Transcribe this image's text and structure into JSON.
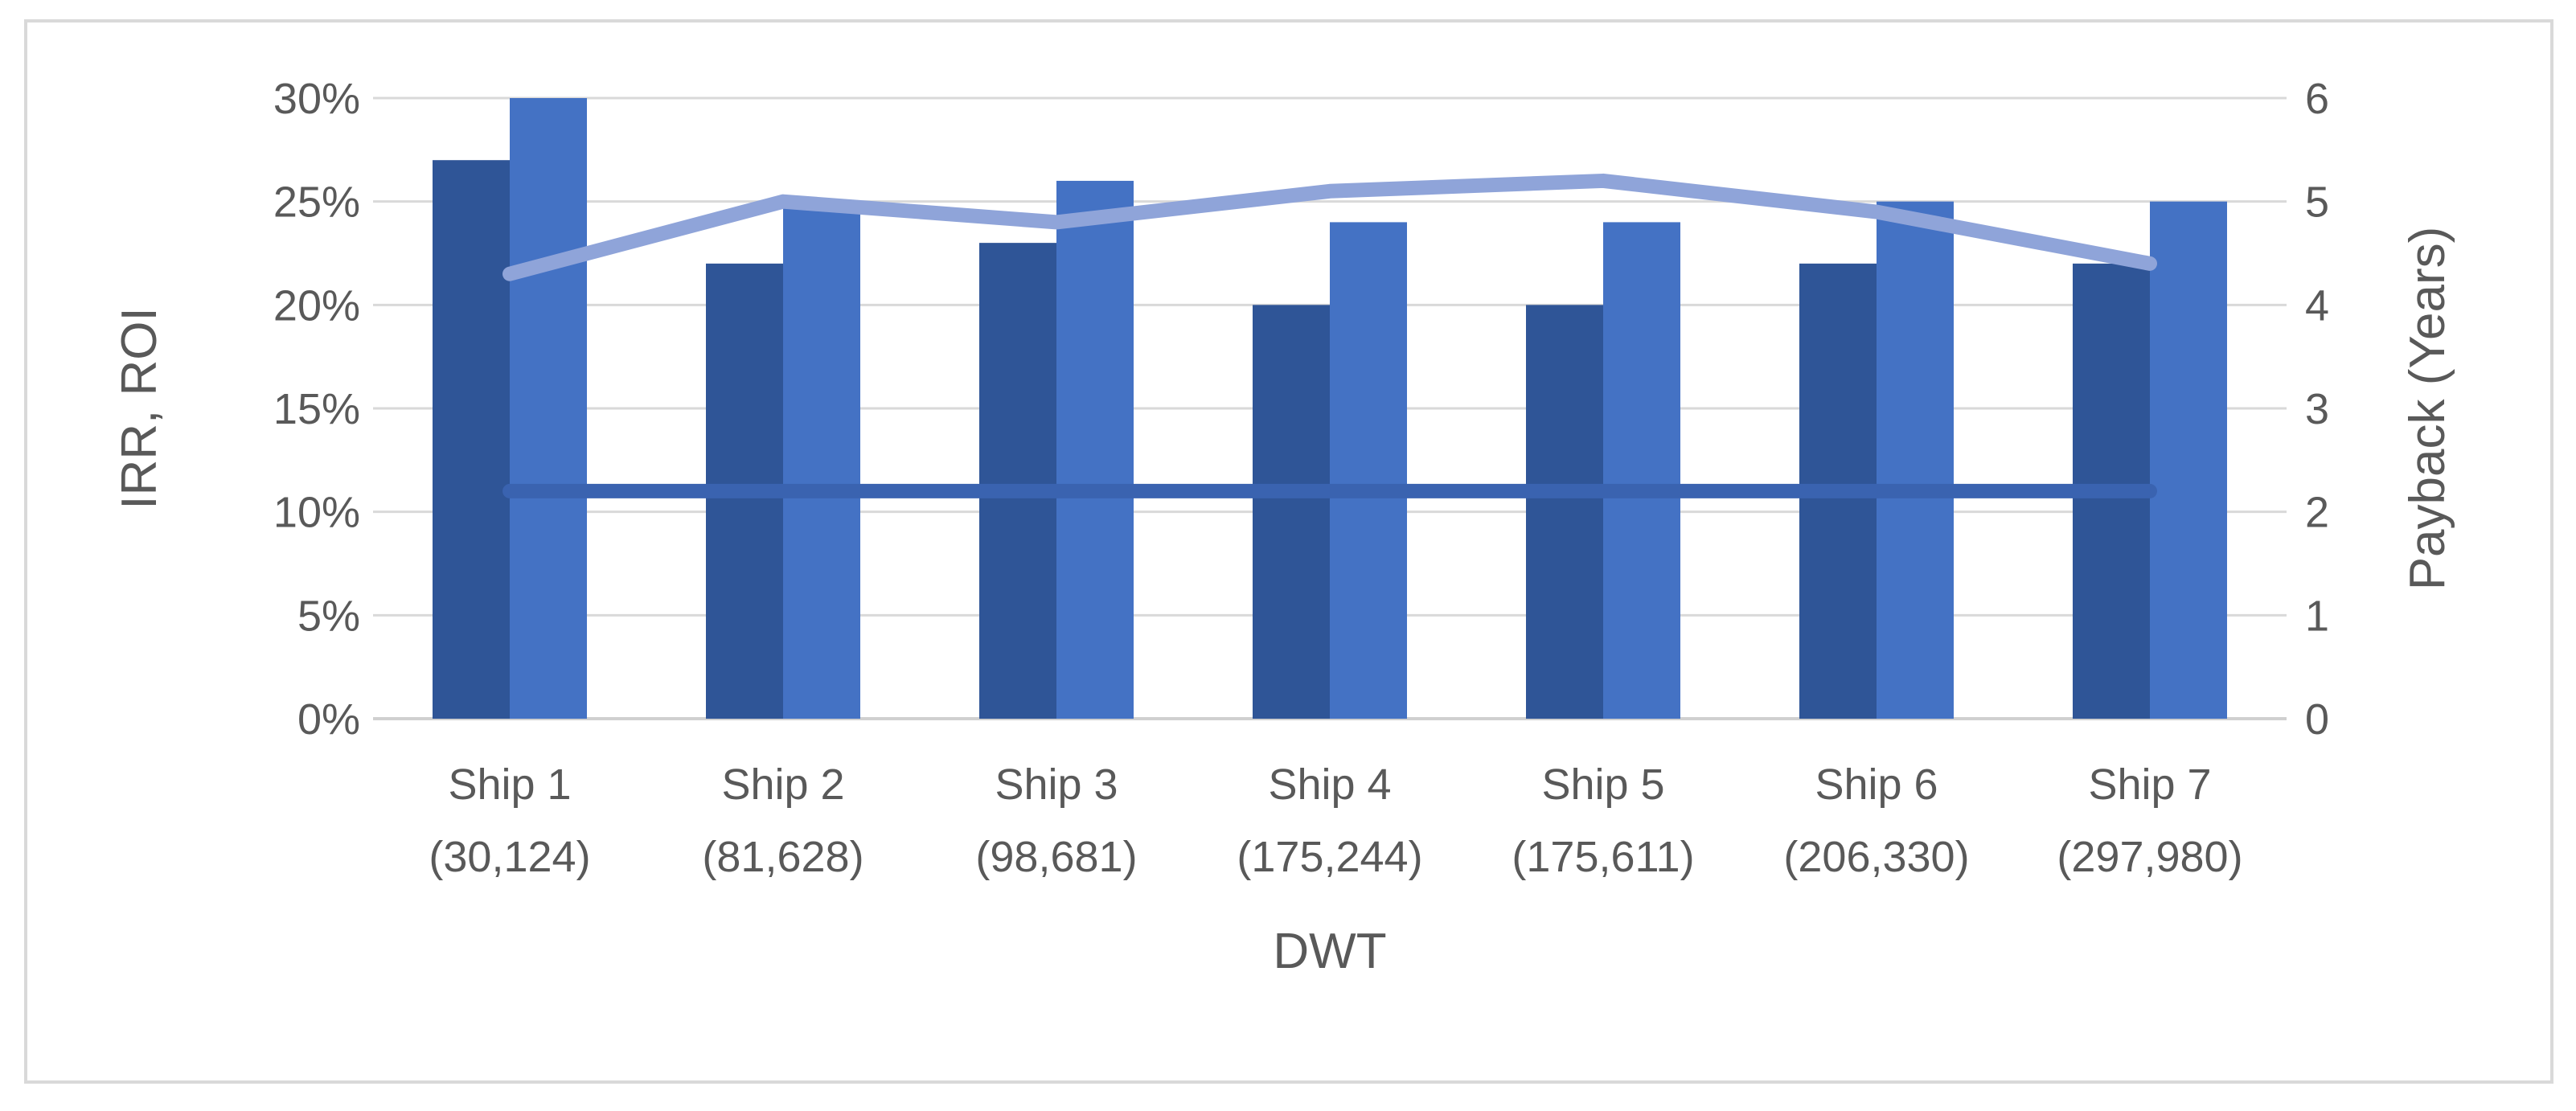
{
  "chart_data": {
    "type": "bar",
    "categories": [
      "Ship 1\n(30,124)",
      "Ship 2\n(81,628)",
      "Ship 3\n(98,681)",
      "Ship 4\n(175,244)",
      "Ship 5\n(175,611)",
      "Ship 6\n(206,330)",
      "Ship 7\n(297,980)"
    ],
    "xlabel": "DWT",
    "ylabel": "IRR, ROI",
    "y2label": "Payback (Years)",
    "ylim": [
      0,
      0.3
    ],
    "y2lim": [
      0,
      6
    ],
    "yticks": [
      "0%",
      "5%",
      "10%",
      "15%",
      "20%",
      "25%",
      "30%"
    ],
    "y2ticks": [
      "0",
      "1",
      "2",
      "3",
      "4",
      "5",
      "6"
    ],
    "grid": true,
    "legend": "none",
    "series": [
      {
        "type": "bar",
        "axis": "left",
        "color": "#2f5597",
        "values": [
          0.27,
          0.22,
          0.23,
          0.2,
          0.2,
          0.22,
          0.22
        ]
      },
      {
        "type": "bar",
        "axis": "left",
        "color": "#4472c4",
        "values": [
          0.3,
          0.25,
          0.26,
          0.24,
          0.24,
          0.25,
          0.25
        ]
      },
      {
        "type": "line",
        "axis": "left",
        "color": "#3a63b0",
        "values": [
          0.11,
          0.11,
          0.11,
          0.11,
          0.11,
          0.11,
          0.11
        ]
      },
      {
        "type": "line",
        "axis": "right",
        "color": "#8fa4d9",
        "values": [
          4.3,
          5.0,
          4.8,
          5.1,
          5.2,
          4.9,
          4.4
        ]
      }
    ]
  }
}
